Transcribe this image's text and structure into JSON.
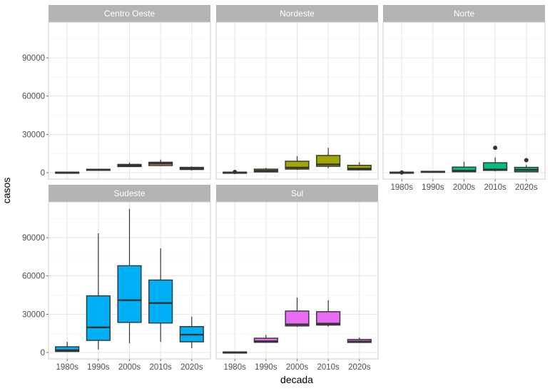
{
  "chart_data": {
    "type": "boxplot",
    "xlabel": "decada",
    "ylabel": "casos",
    "ylim": [
      -5000,
      118000
    ],
    "yticks": [
      0,
      30000,
      60000,
      90000
    ],
    "ytick_labels": [
      "0",
      "30000",
      "60000",
      "90000"
    ],
    "categories": [
      "1980s",
      "1990s",
      "2000s",
      "2010s",
      "2020s"
    ],
    "grid": true,
    "facets": [
      {
        "name": "Centro Oeste",
        "color": "#F8766D",
        "boxes": [
          {
            "category": "1980s",
            "min": 0,
            "q1": 0,
            "median": 200,
            "q3": 400,
            "max": 600,
            "outliers": []
          },
          {
            "category": "1990s",
            "min": 1500,
            "q1": 1900,
            "median": 2300,
            "q3": 2700,
            "max": 3100,
            "outliers": []
          },
          {
            "category": "2000s",
            "min": 4500,
            "q1": 4800,
            "median": 5600,
            "q3": 6500,
            "max": 7800,
            "outliers": []
          },
          {
            "category": "2010s",
            "min": 5200,
            "q1": 5600,
            "median": 7200,
            "q3": 8200,
            "max": 10200,
            "outliers": []
          },
          {
            "category": "2020s",
            "min": 1800,
            "q1": 2500,
            "median": 3200,
            "q3": 4200,
            "max": 5000,
            "outliers": []
          }
        ]
      },
      {
        "name": "Nordeste",
        "color": "#A3A500",
        "boxes": [
          {
            "category": "1980s",
            "min": 0,
            "q1": 0,
            "median": 200,
            "q3": 400,
            "max": 600,
            "outliers": [
              600
            ]
          },
          {
            "category": "1990s",
            "min": 300,
            "q1": 600,
            "median": 1500,
            "q3": 2800,
            "max": 3800,
            "outliers": []
          },
          {
            "category": "2000s",
            "min": 2200,
            "q1": 2800,
            "median": 4000,
            "q3": 9000,
            "max": 13000,
            "outliers": []
          },
          {
            "category": "2010s",
            "min": 3500,
            "q1": 5000,
            "median": 6500,
            "q3": 13500,
            "max": 19500,
            "outliers": []
          },
          {
            "category": "2020s",
            "min": 1800,
            "q1": 2200,
            "median": 3200,
            "q3": 5800,
            "max": 8200,
            "outliers": []
          }
        ]
      },
      {
        "name": "Norte",
        "color": "#00BF7D",
        "boxes": [
          {
            "category": "1980s",
            "min": 0,
            "q1": 0,
            "median": 200,
            "q3": 400,
            "max": 600,
            "outliers": [
              200
            ]
          },
          {
            "category": "1990s",
            "min": 100,
            "q1": 300,
            "median": 700,
            "q3": 1100,
            "max": 1400,
            "outliers": []
          },
          {
            "category": "2000s",
            "min": 400,
            "q1": 700,
            "median": 1500,
            "q3": 4400,
            "max": 8500,
            "outliers": []
          },
          {
            "category": "2010s",
            "min": 1000,
            "q1": 1800,
            "median": 2500,
            "q3": 7800,
            "max": 12000,
            "outliers": [
              19500
            ]
          },
          {
            "category": "2020s",
            "min": 400,
            "q1": 700,
            "median": 2200,
            "q3": 4200,
            "max": 6000,
            "outliers": [
              9800
            ]
          }
        ]
      },
      {
        "name": "Sudeste",
        "color": "#00B0F6",
        "boxes": [
          {
            "category": "1980s",
            "min": 400,
            "q1": 800,
            "median": 1800,
            "q3": 4500,
            "max": 8400,
            "outliers": []
          },
          {
            "category": "1990s",
            "min": 2300,
            "q1": 9500,
            "median": 19700,
            "q3": 44400,
            "max": 93400,
            "outliers": []
          },
          {
            "category": "2000s",
            "min": 7300,
            "q1": 23600,
            "median": 41000,
            "q3": 68000,
            "max": 112500,
            "outliers": []
          },
          {
            "category": "2010s",
            "min": 8400,
            "q1": 23100,
            "median": 38800,
            "q3": 56800,
            "max": 81600,
            "outliers": []
          },
          {
            "category": "2020s",
            "min": 3400,
            "q1": 8400,
            "median": 14000,
            "q3": 20300,
            "max": 28100,
            "outliers": []
          }
        ]
      },
      {
        "name": "Sul",
        "color": "#E76BF3",
        "boxes": [
          {
            "category": "1980s",
            "min": 0,
            "q1": 0,
            "median": 200,
            "q3": 400,
            "max": 600,
            "outliers": []
          },
          {
            "category": "1990s",
            "min": 7800,
            "q1": 8000,
            "median": 8800,
            "q3": 11200,
            "max": 13800,
            "outliers": []
          },
          {
            "category": "2000s",
            "min": 20000,
            "q1": 20800,
            "median": 22000,
            "q3": 32500,
            "max": 43000,
            "outliers": []
          },
          {
            "category": "2010s",
            "min": 20300,
            "q1": 21500,
            "median": 22600,
            "q3": 32000,
            "max": 41000,
            "outliers": []
          },
          {
            "category": "2020s",
            "min": 7700,
            "q1": 7900,
            "median": 8600,
            "q3": 10200,
            "max": 11800,
            "outliers": []
          }
        ]
      }
    ]
  }
}
